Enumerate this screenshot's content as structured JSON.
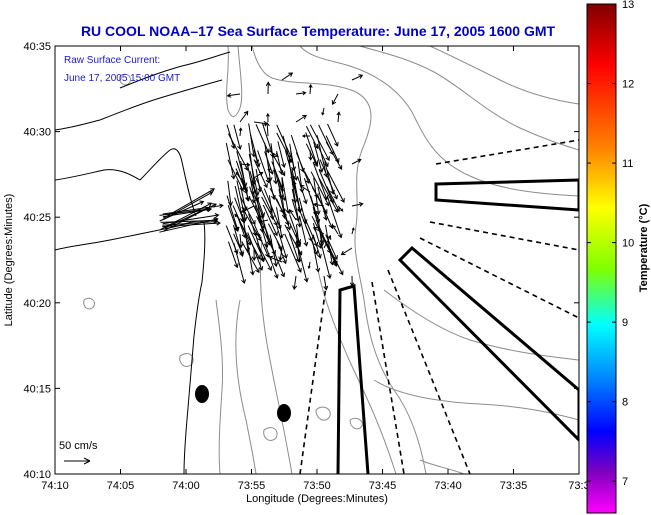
{
  "chart_data": {
    "type": "map",
    "title": "RU COOL  NOAA–17  Sea Surface Temperature:  June 17, 2005 1600 GMT",
    "annotation": [
      "Raw Surface Current:",
      "June 17, 2005 15:00 GMT"
    ],
    "xlabel": "Longitude (Degrees:Minutes)",
    "ylabel": "Latitude (Degrees:Minutes)",
    "x_ticks": [
      "74:10",
      "74:05",
      "74:00",
      "73:55",
      "73:50",
      "73:45",
      "73:40",
      "73:35",
      "73:3"
    ],
    "y_ticks": [
      "40:35",
      "40:30",
      "40:25",
      "40:20",
      "40:15",
      "40:10"
    ],
    "xlim_minutes": [
      -70,
      -30
    ],
    "ylim_minutes": [
      10,
      35
    ],
    "scale_label": "50 cm/s",
    "colorbar": {
      "label": "Temperature (°C)",
      "ticks": [
        "13",
        "12",
        "11",
        "10",
        "9",
        "8",
        "7"
      ],
      "range": [
        6.6,
        13
      ]
    }
  },
  "colors": {
    "title": "#0000cc",
    "annotation": "#1a1ad0",
    "frame": "#000000",
    "contour": "#888888"
  }
}
